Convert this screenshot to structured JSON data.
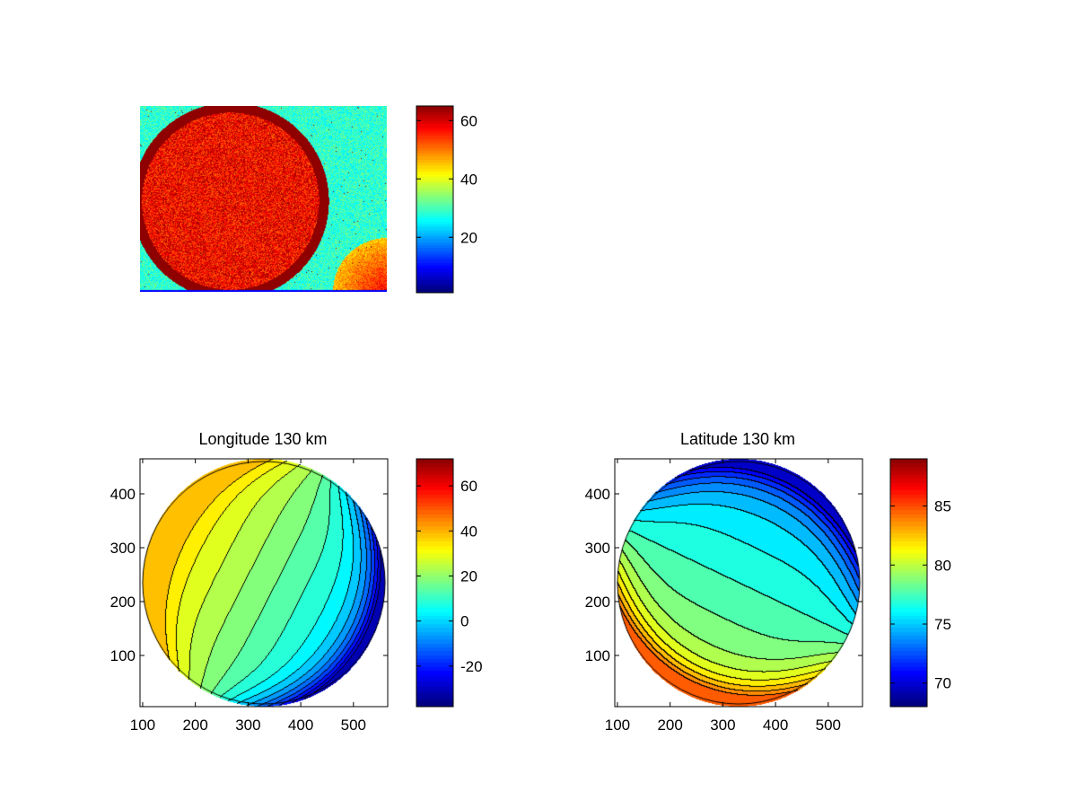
{
  "colors": {
    "background": "#ffffff",
    "axes_edge": "#000000",
    "contour_line": "#000000",
    "colormap": "jet"
  },
  "chart_data": [
    {
      "type": "heatmap",
      "title": "",
      "xlabel": "",
      "ylabel": "",
      "description_kind": "image",
      "colorbar": {
        "ticks": [
          "20",
          "40",
          "60"
        ],
        "tick_values": [
          20,
          40,
          60
        ],
        "range": [
          1,
          65
        ]
      },
      "image_levels": {
        "background": 28,
        "disk": 57,
        "disk_rim": 64,
        "lower_right_corner": 45
      },
      "grid": false
    },
    {
      "type": "heatmap",
      "title": "Longitude 130 km",
      "xlabel": "",
      "ylabel": "",
      "xlim": [
        95,
        565
      ],
      "ylim": [
        5,
        465
      ],
      "xticks": [
        "100",
        "200",
        "300",
        "400",
        "500"
      ],
      "xtick_values": [
        100,
        200,
        300,
        400,
        500
      ],
      "yticks": [
        "100",
        "200",
        "300",
        "400"
      ],
      "ytick_values": [
        100,
        200,
        300,
        400
      ],
      "colorbar": {
        "ticks": [
          "-20",
          "0",
          "20",
          "40",
          "60"
        ],
        "tick_values": [
          -20,
          0,
          20,
          40,
          60
        ],
        "range": [
          -38,
          72
        ]
      },
      "disk": {
        "center": [
          330,
          235
        ],
        "radius": 230
      },
      "contour_levels": [
        -30,
        -25,
        -20,
        -15,
        -10,
        -5,
        0,
        5,
        10,
        15,
        20,
        25,
        30,
        35
      ],
      "grid": false
    },
    {
      "type": "heatmap",
      "title": "Latitude 130 km",
      "xlabel": "",
      "ylabel": "",
      "xlim": [
        95,
        565
      ],
      "ylim": [
        5,
        465
      ],
      "xticks": [
        "100",
        "200",
        "300",
        "400",
        "500"
      ],
      "xtick_values": [
        100,
        200,
        300,
        400,
        500
      ],
      "yticks": [
        "100",
        "200",
        "300",
        "400"
      ],
      "ytick_values": [
        100,
        200,
        300,
        400
      ],
      "colorbar": {
        "ticks": [
          "70",
          "75",
          "80",
          "85"
        ],
        "tick_values": [
          70,
          75,
          80,
          85
        ],
        "range": [
          68,
          89
        ]
      },
      "disk": {
        "center": [
          330,
          235
        ],
        "radius": 230
      },
      "contour_levels": [
        70,
        71,
        72,
        73,
        74,
        75,
        76,
        77,
        78,
        79,
        80,
        81,
        82,
        83,
        84
      ],
      "grid": false
    }
  ]
}
